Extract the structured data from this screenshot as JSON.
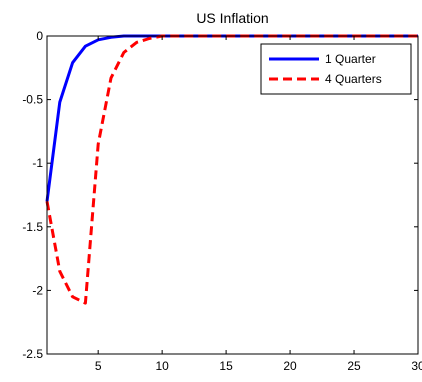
{
  "chart_data": {
    "type": "line",
    "title": "US Inflation",
    "xlabel": "",
    "ylabel": "",
    "xlim": [
      1,
      30
    ],
    "ylim": [
      -2.5,
      0
    ],
    "xticks": [
      5,
      10,
      15,
      20,
      25,
      30
    ],
    "yticks": [
      0,
      -0.5,
      -1,
      -1.5,
      -2,
      -2.5
    ],
    "xtick_labels": [
      "5",
      "10",
      "15",
      "20",
      "25",
      "30"
    ],
    "ytick_labels": [
      "0",
      "-0.5",
      "-1",
      "-1.5",
      "-2",
      "-2.5"
    ],
    "grid": false,
    "legend_position": "top-right",
    "series": [
      {
        "name": "1 Quarter",
        "color": "#0000ff",
        "style": "solid",
        "x": [
          1,
          2,
          3,
          4,
          5,
          6,
          7,
          8,
          9,
          10,
          11,
          12,
          13,
          14,
          15,
          16,
          17,
          18,
          19,
          20,
          21,
          22,
          23,
          24,
          25,
          26,
          27,
          28,
          29,
          30
        ],
        "values": [
          -1.3,
          -0.52,
          -0.21,
          -0.08,
          -0.03,
          -0.01,
          0,
          0,
          0,
          0,
          0,
          0,
          0,
          0,
          0,
          0,
          0,
          0,
          0,
          0,
          0,
          0,
          0,
          0,
          0,
          0,
          0,
          0,
          0,
          0
        ]
      },
      {
        "name": "4 Quarters",
        "color": "#ff0000",
        "style": "dashed",
        "x": [
          1,
          2,
          3,
          4,
          5,
          6,
          7,
          8,
          9,
          10,
          11,
          12,
          13,
          14,
          15,
          16,
          17,
          18,
          19,
          20,
          21,
          22,
          23,
          24,
          25,
          26,
          27,
          28,
          29,
          30
        ],
        "values": [
          -1.3,
          -1.85,
          -2.05,
          -2.1,
          -0.85,
          -0.33,
          -0.13,
          -0.05,
          -0.02,
          0,
          0,
          0,
          0,
          0,
          0,
          0,
          0,
          0,
          0,
          0,
          0,
          0,
          0,
          0,
          0,
          0,
          0,
          0,
          0,
          0
        ]
      }
    ]
  }
}
